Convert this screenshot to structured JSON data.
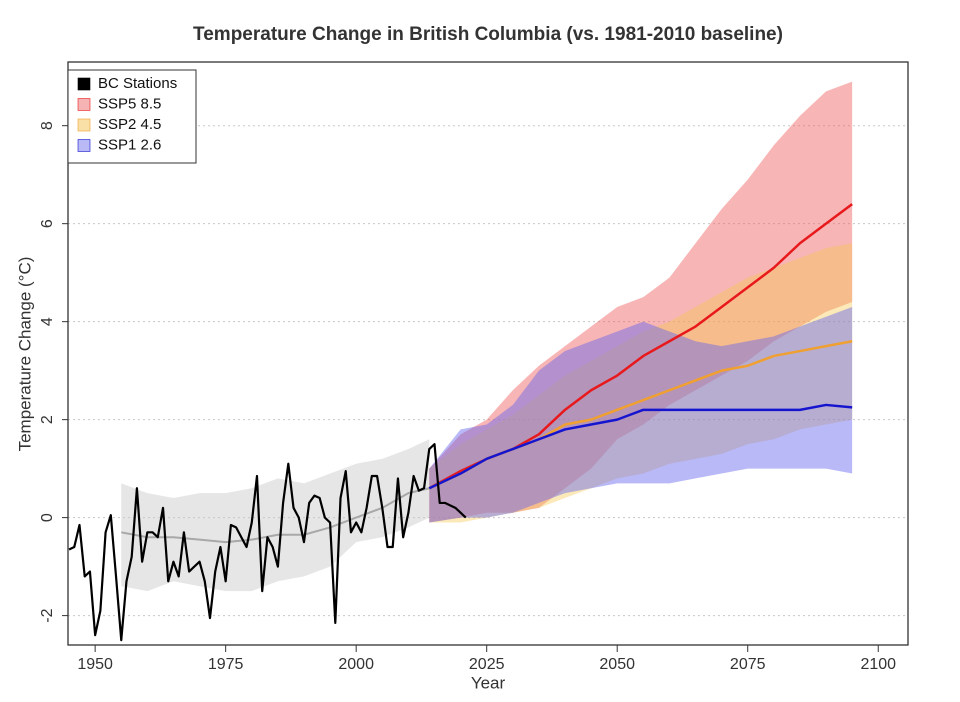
{
  "chart_data": {
    "type": "line",
    "title": "Temperature Change in British Columbia (vs. 1981-2010 baseline)",
    "x_label": "Year",
    "y_label": "Temperature Change (°C)",
    "xlim": [
      1944.8,
      2105.7
    ],
    "ylim": [
      -2.6,
      9.3
    ],
    "xticks": [
      1950,
      1975,
      2000,
      2025,
      2050,
      2075,
      2100
    ],
    "yticks": [
      -2,
      0,
      2,
      4,
      6,
      8
    ],
    "grid": true,
    "legend": "top-left",
    "historical": {
      "color": "#a8a8a8",
      "band_color": "rgba(200,200,200,0.45)",
      "x": [
        1955,
        1960,
        1965,
        1970,
        1975,
        1980,
        1985,
        1990,
        1995,
        2000,
        2005,
        2010,
        2014
      ],
      "values": [
        -0.3,
        -0.4,
        -0.4,
        -0.45,
        -0.5,
        -0.45,
        -0.35,
        -0.35,
        -0.2,
        0.0,
        0.2,
        0.5,
        0.6
      ],
      "lower": [
        -1.4,
        -1.5,
        -1.3,
        -1.4,
        -1.5,
        -1.5,
        -1.3,
        -1.2,
        -1.0,
        -0.5,
        -0.4,
        -0.2,
        0.0
      ],
      "upper": [
        0.7,
        0.5,
        0.4,
        0.5,
        0.5,
        0.6,
        0.8,
        0.7,
        0.9,
        1.1,
        1.2,
        1.4,
        1.6
      ]
    },
    "series": [
      {
        "name": "BC Stations",
        "color": "#000000",
        "legend_color": "#000000",
        "x": [
          1945,
          1946,
          1947,
          1948,
          1949,
          1950,
          1951,
          1952,
          1953,
          1954,
          1955,
          1956,
          1957,
          1958,
          1959,
          1960,
          1961,
          1962,
          1963,
          1964,
          1965,
          1966,
          1967,
          1968,
          1969,
          1970,
          1971,
          1972,
          1973,
          1974,
          1975,
          1976,
          1977,
          1978,
          1979,
          1980,
          1981,
          1982,
          1983,
          1984,
          1985,
          1986,
          1987,
          1988,
          1989,
          1990,
          1991,
          1992,
          1993,
          1994,
          1995,
          1996,
          1997,
          1998,
          1999,
          2000,
          2001,
          2002,
          2003,
          2004,
          2005,
          2006,
          2007,
          2008,
          2009,
          2010,
          2011,
          2012,
          2013,
          2014,
          2015,
          2016,
          2017,
          2018,
          2019,
          2020,
          2021
        ],
        "values": [
          -0.65,
          -0.6,
          -0.15,
          -1.2,
          -1.1,
          -2.4,
          -1.9,
          -0.3,
          0.05,
          -1.2,
          -2.5,
          -1.3,
          -0.8,
          0.6,
          -0.9,
          -0.3,
          -0.3,
          -0.4,
          0.2,
          -1.3,
          -0.9,
          -1.2,
          -0.3,
          -1.1,
          -1.0,
          -0.9,
          -1.3,
          -2.05,
          -1.1,
          -0.6,
          -1.3,
          -0.15,
          -0.2,
          -0.4,
          -0.6,
          -0.1,
          0.85,
          -1.5,
          -0.4,
          -0.6,
          -1.0,
          0.3,
          1.1,
          0.2,
          0.0,
          -0.5,
          0.3,
          0.45,
          0.4,
          0.0,
          -0.1,
          -2.15,
          0.4,
          0.95,
          -0.3,
          -0.1,
          -0.3,
          0.2,
          0.85,
          0.85,
          0.2,
          -0.6,
          -0.6,
          0.8,
          -0.4,
          0.1,
          0.85,
          0.55,
          0.6,
          1.4,
          1.5,
          0.3,
          0.3,
          0.25,
          0.2,
          0.1,
          0.0
        ]
      },
      {
        "name": "SSP5 8.5",
        "color": "#e8191c",
        "band_color": "rgba(240,90,90,0.45)",
        "legend_color": "#f6b3b3",
        "x": [
          2014,
          2020,
          2025,
          2030,
          2035,
          2040,
          2045,
          2050,
          2055,
          2060,
          2065,
          2070,
          2075,
          2080,
          2085,
          2090,
          2095
        ],
        "values": [
          0.6,
          0.95,
          1.2,
          1.4,
          1.7,
          2.2,
          2.6,
          2.9,
          3.3,
          3.6,
          3.9,
          4.3,
          4.7,
          5.1,
          5.6,
          6.0,
          6.4
        ],
        "lower": [
          -0.1,
          0.0,
          0.1,
          0.1,
          0.2,
          0.6,
          1.0,
          1.6,
          1.9,
          2.3,
          2.6,
          2.9,
          3.2,
          3.6,
          3.9,
          4.2,
          4.4
        ],
        "upper": [
          1.0,
          1.7,
          2.0,
          2.6,
          3.1,
          3.5,
          3.9,
          4.3,
          4.5,
          4.9,
          5.6,
          6.3,
          6.9,
          7.6,
          8.2,
          8.7,
          8.9
        ]
      },
      {
        "name": "SSP2 4.5",
        "color": "#f0a030",
        "band_color": "rgba(245,200,80,0.4)",
        "legend_color": "#f9e0a6",
        "x": [
          2014,
          2020,
          2025,
          2030,
          2035,
          2040,
          2045,
          2050,
          2055,
          2060,
          2065,
          2070,
          2075,
          2080,
          2085,
          2090,
          2095
        ],
        "values": [
          0.6,
          0.9,
          1.2,
          1.4,
          1.6,
          1.9,
          2.0,
          2.2,
          2.4,
          2.6,
          2.8,
          3.0,
          3.1,
          3.3,
          3.4,
          3.5,
          3.6
        ],
        "lower": [
          -0.1,
          -0.1,
          0.0,
          0.1,
          0.2,
          0.4,
          0.6,
          0.8,
          0.9,
          1.1,
          1.2,
          1.3,
          1.5,
          1.6,
          1.8,
          1.9,
          2.0
        ],
        "upper": [
          1.0,
          1.5,
          1.8,
          2.1,
          2.5,
          2.9,
          3.2,
          3.5,
          3.8,
          4.0,
          4.3,
          4.6,
          4.9,
          5.1,
          5.3,
          5.5,
          5.6
        ]
      },
      {
        "name": "SSP1 2.6",
        "color": "#1515d0",
        "band_color": "rgba(100,100,240,0.45)",
        "legend_color": "#b9b9f6",
        "x": [
          2014,
          2020,
          2025,
          2030,
          2035,
          2040,
          2045,
          2050,
          2055,
          2060,
          2065,
          2070,
          2075,
          2080,
          2085,
          2090,
          2095
        ],
        "values": [
          0.6,
          0.9,
          1.2,
          1.4,
          1.6,
          1.8,
          1.9,
          2.0,
          2.2,
          2.2,
          2.2,
          2.2,
          2.2,
          2.2,
          2.2,
          2.3,
          2.25
        ],
        "lower": [
          -0.1,
          0.0,
          0.0,
          0.1,
          0.3,
          0.5,
          0.6,
          0.7,
          0.7,
          0.7,
          0.8,
          0.9,
          1.0,
          1.0,
          1.0,
          1.0,
          0.9
        ],
        "upper": [
          1.0,
          1.8,
          1.9,
          2.3,
          3.0,
          3.4,
          3.6,
          3.8,
          4.0,
          3.8,
          3.6,
          3.5,
          3.6,
          3.7,
          3.9,
          4.1,
          4.3
        ]
      }
    ]
  }
}
